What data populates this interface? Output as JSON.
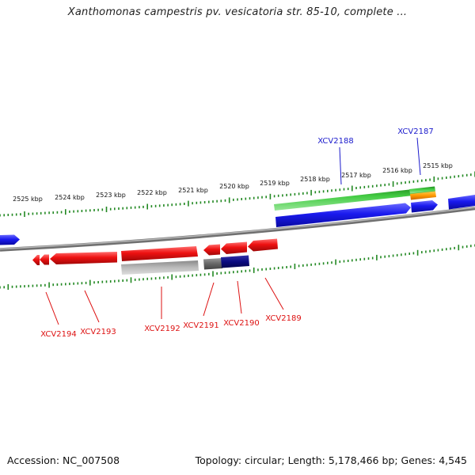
{
  "title": "Xanthomonas campestris pv. vesicatoria str. 85-10, complete ...",
  "footer": {
    "accession": "Accession: NC_007508",
    "summary": "Topology: circular; Length: 5,178,466 bp; Genes: 4,545"
  },
  "colors": {
    "plus_strand": "#1a1aee",
    "minus_strand": "#ee1111",
    "label_blue": "#1a1acc",
    "label_red": "#dd1111",
    "rrna_green": "#33bb33",
    "orange": "#ff9900",
    "gray_light": "#bbbbbb",
    "gray_dark": "#666666",
    "navy": "#0a0a80",
    "backbone": "#888888",
    "tick_green": "#228822"
  },
  "scale_labels": [
    "2525 kbp",
    "2524 kbp",
    "2523 kbp",
    "2522 kbp",
    "2521 kbp",
    "2520 kbp",
    "2519 kbp",
    "2518 kbp",
    "2517 kbp",
    "2516 kbp",
    "2515 kbp"
  ],
  "gene_labels": {
    "top": [
      "XCV2188",
      "XCV2187"
    ],
    "bottom": [
      "XCV2194",
      "XCV2193",
      "XCV2192",
      "XCV2191",
      "XCV2190",
      "XCV2189"
    ]
  }
}
